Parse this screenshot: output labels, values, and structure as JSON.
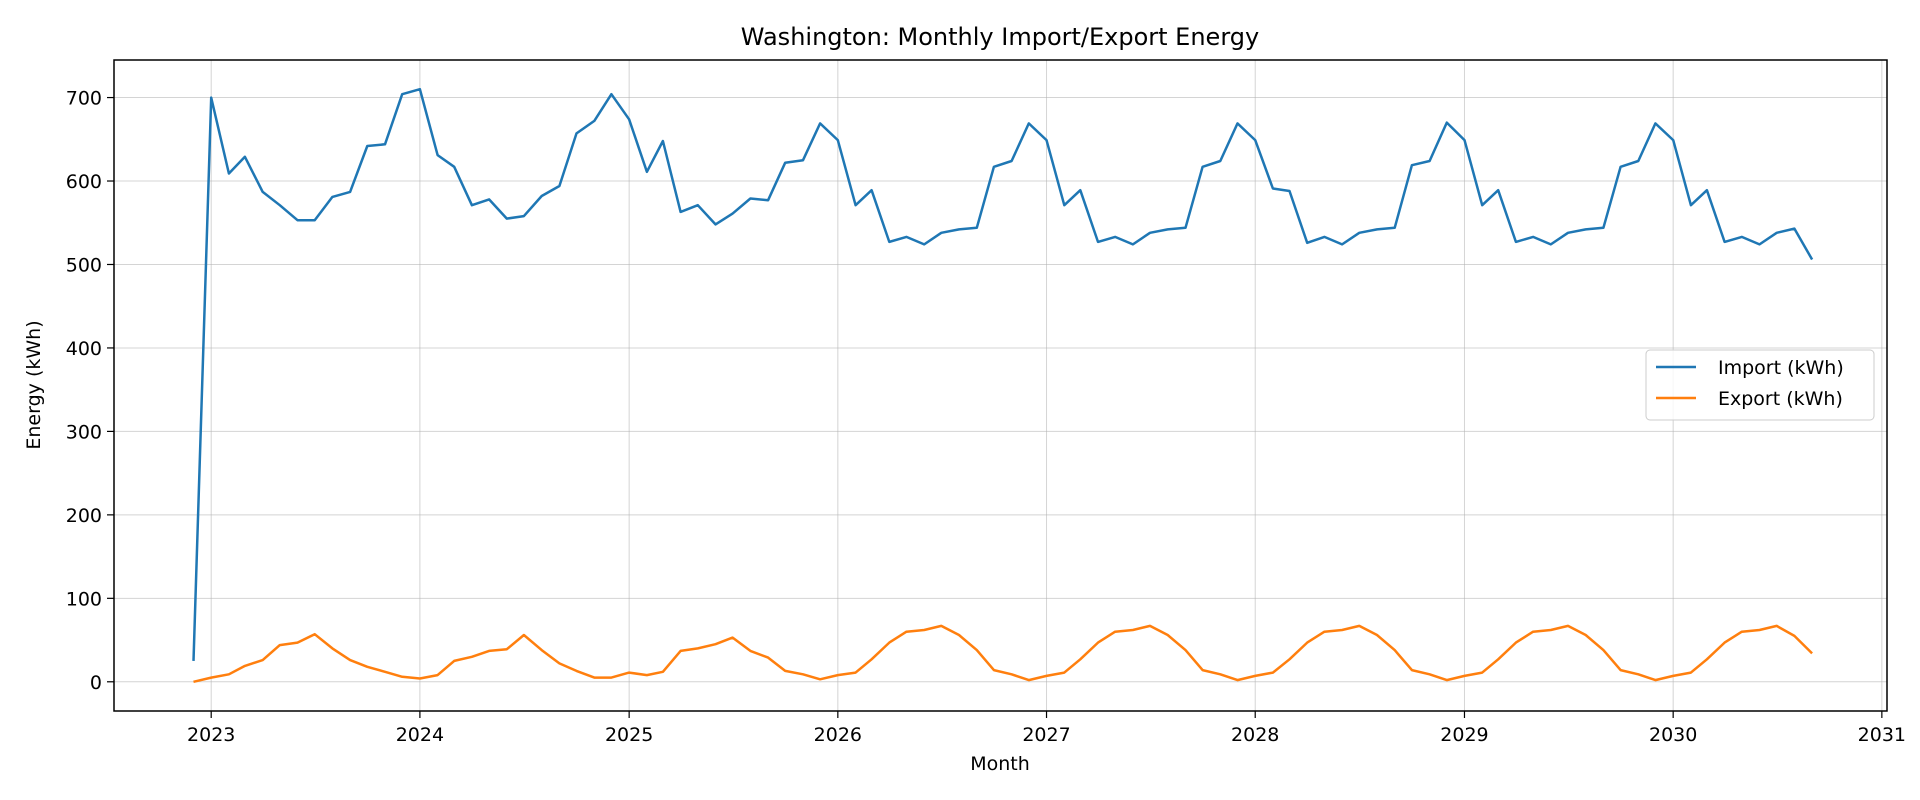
{
  "chart_data": {
    "type": "line",
    "title": "Washington: Monthly Import/Export Energy",
    "xlabel": "Month",
    "ylabel": "Energy (kWh)",
    "x_ticks": [
      "2023",
      "2024",
      "2025",
      "2026",
      "2027",
      "2028",
      "2029",
      "2030",
      "2031"
    ],
    "y_ticks": [
      0,
      100,
      200,
      300,
      400,
      500,
      600,
      700
    ],
    "xlim": [
      "2022-07-15",
      "2031-01-10"
    ],
    "ylim": [
      -35,
      745
    ],
    "grid": true,
    "legend_position": "center-right",
    "x": [
      "2022-12",
      "2023-01",
      "2023-02",
      "2023-03",
      "2023-04",
      "2023-05",
      "2023-06",
      "2023-07",
      "2023-08",
      "2023-09",
      "2023-10",
      "2023-11",
      "2023-12",
      "2024-01",
      "2024-02",
      "2024-03",
      "2024-04",
      "2024-05",
      "2024-06",
      "2024-07",
      "2024-08",
      "2024-09",
      "2024-10",
      "2024-11",
      "2024-12",
      "2025-01",
      "2025-02",
      "2025-03",
      "2025-04",
      "2025-05",
      "2025-06",
      "2025-07",
      "2025-08",
      "2025-09",
      "2025-10",
      "2025-11",
      "2025-12",
      "2026-01",
      "2026-02",
      "2026-03",
      "2026-04",
      "2026-05",
      "2026-06",
      "2026-07",
      "2026-08",
      "2026-09",
      "2026-10",
      "2026-11",
      "2026-12",
      "2027-01",
      "2027-02",
      "2027-03",
      "2027-04",
      "2027-05",
      "2027-06",
      "2027-07",
      "2027-08",
      "2027-09",
      "2027-10",
      "2027-11",
      "2027-12",
      "2028-01",
      "2028-02",
      "2028-03",
      "2028-04",
      "2028-05",
      "2028-06",
      "2028-07",
      "2028-08",
      "2028-09",
      "2028-10",
      "2028-11",
      "2028-12",
      "2029-01",
      "2029-02",
      "2029-03",
      "2029-04",
      "2029-05",
      "2029-06",
      "2029-07",
      "2029-08",
      "2029-09",
      "2029-10",
      "2029-11",
      "2029-12",
      "2030-01",
      "2030-02",
      "2030-03",
      "2030-04",
      "2030-05",
      "2030-06",
      "2030-07",
      "2030-08",
      "2030-09"
    ],
    "series": [
      {
        "name": "Import (kWh)",
        "color": "#1f77b4",
        "values": [
          25,
          700,
          609,
          629,
          587,
          571,
          553,
          553,
          581,
          587,
          642,
          644,
          704,
          710,
          631,
          617,
          571,
          578,
          555,
          558,
          582,
          594,
          657,
          672,
          704,
          674,
          611,
          648,
          563,
          571,
          548,
          561,
          579,
          577,
          622,
          625,
          669,
          649,
          571,
          589,
          527,
          533,
          524,
          538,
          542,
          544,
          617,
          624,
          669,
          649,
          571,
          589,
          527,
          533,
          524,
          538,
          542,
          544,
          617,
          624,
          669,
          649,
          591,
          588,
          526,
          533,
          524,
          538,
          542,
          544,
          619,
          624,
          670,
          649,
          571,
          589,
          527,
          533,
          524,
          538,
          542,
          544,
          617,
          624,
          669,
          649,
          571,
          589,
          527,
          533,
          524,
          538,
          543,
          506
        ]
      },
      {
        "name": "Export (kWh)",
        "color": "#ff7f0e",
        "values": [
          0,
          5,
          9,
          19,
          26,
          44,
          47,
          57,
          40,
          26,
          18,
          12,
          6,
          4,
          8,
          25,
          30,
          37,
          39,
          56,
          38,
          22,
          13,
          5,
          5,
          11,
          8,
          12,
          37,
          40,
          45,
          53,
          37,
          29,
          13,
          9,
          3,
          8,
          11,
          27,
          47,
          60,
          62,
          67,
          56,
          38,
          14,
          9,
          2,
          7,
          11,
          27,
          47,
          60,
          62,
          67,
          56,
          38,
          14,
          9,
          2,
          7,
          11,
          27,
          47,
          60,
          62,
          67,
          56,
          38,
          14,
          9,
          2,
          7,
          11,
          27,
          47,
          60,
          62,
          67,
          56,
          38,
          14,
          9,
          2,
          7,
          11,
          27,
          47,
          60,
          62,
          67,
          55,
          34
        ]
      }
    ]
  }
}
